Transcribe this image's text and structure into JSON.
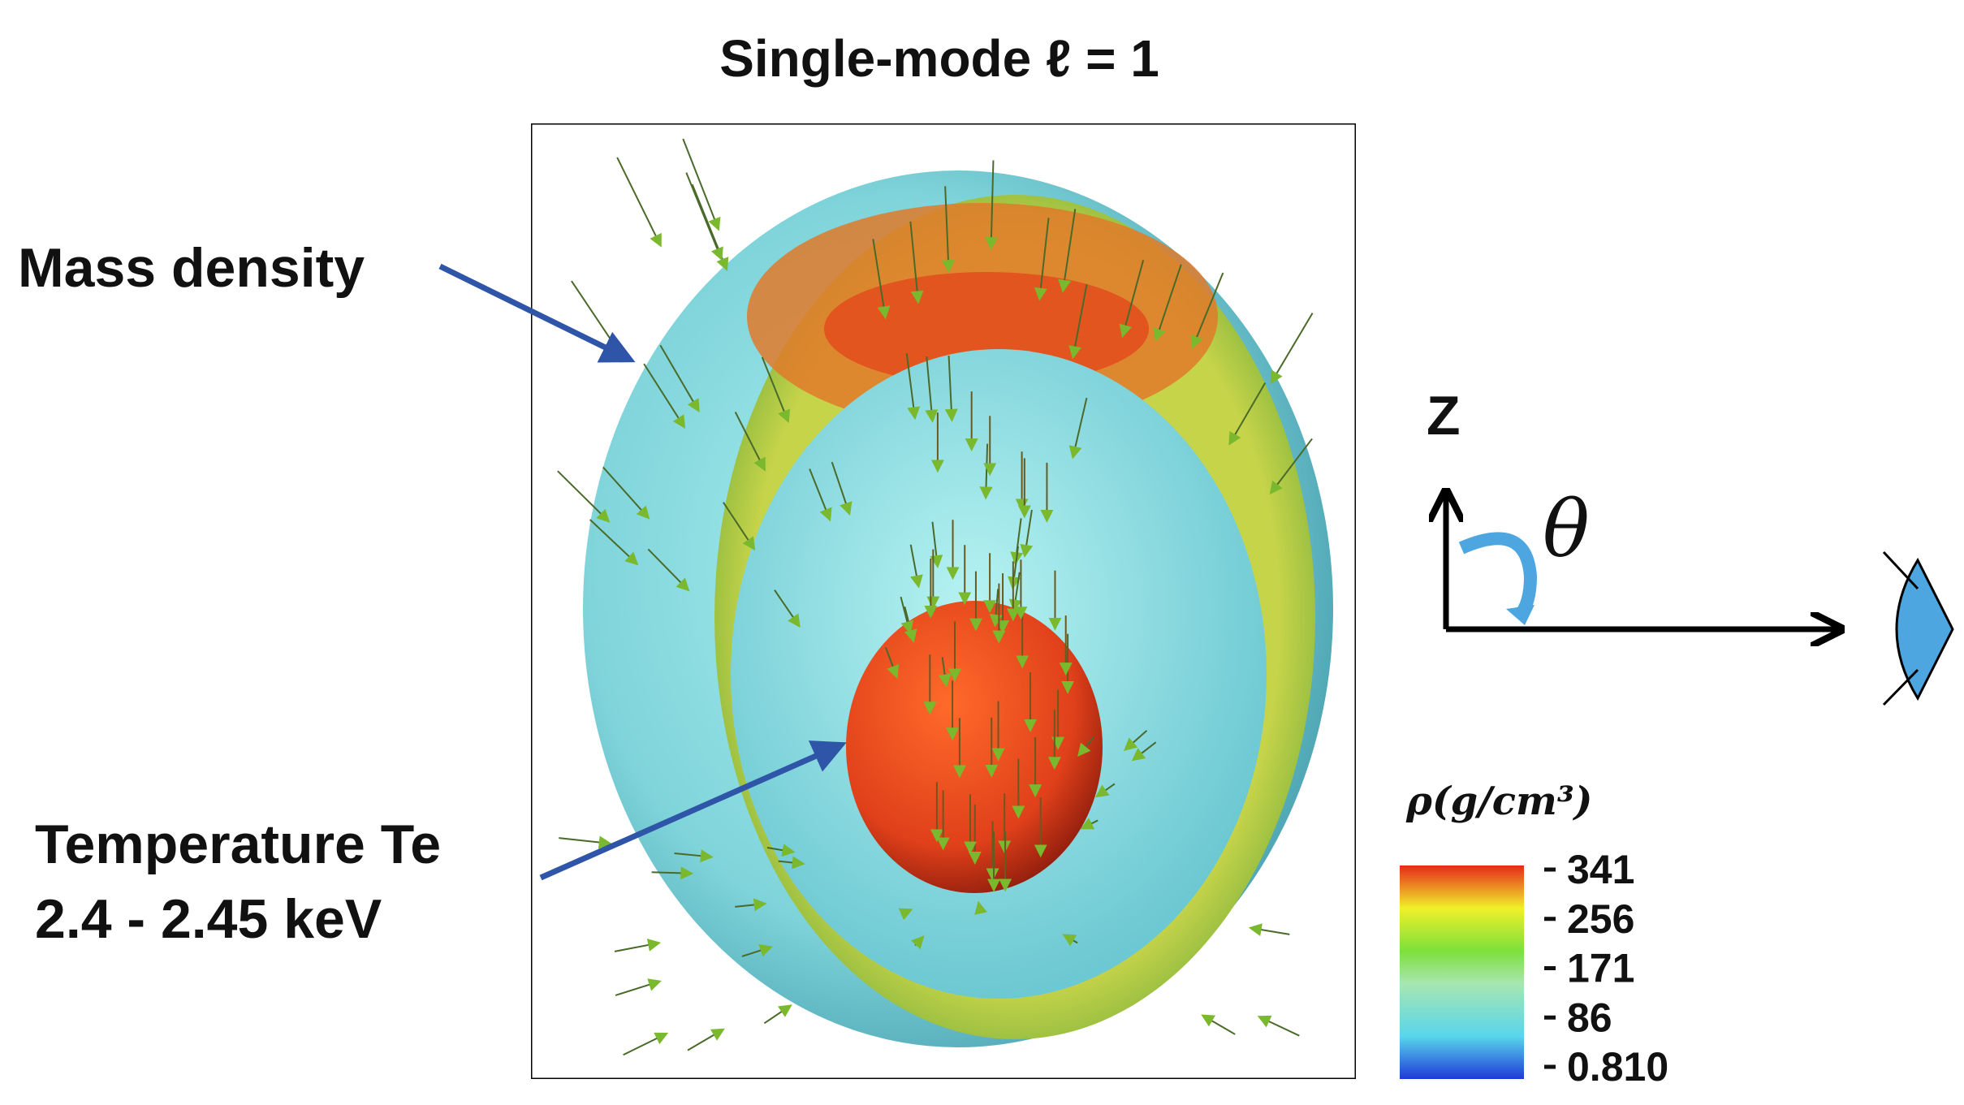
{
  "title": "Single-mode ℓ = 1",
  "annotations": {
    "mass_density": "Mass density",
    "temperature": [
      "Temperature Te",
      "2.4 - 2.45 keV"
    ]
  },
  "axes": {
    "z": "Z",
    "theta": "θ"
  },
  "colorbar": {
    "title": "ρ(g/cm³)",
    "ticks": [
      "341",
      "256",
      "171",
      "86",
      "0.810"
    ]
  }
}
